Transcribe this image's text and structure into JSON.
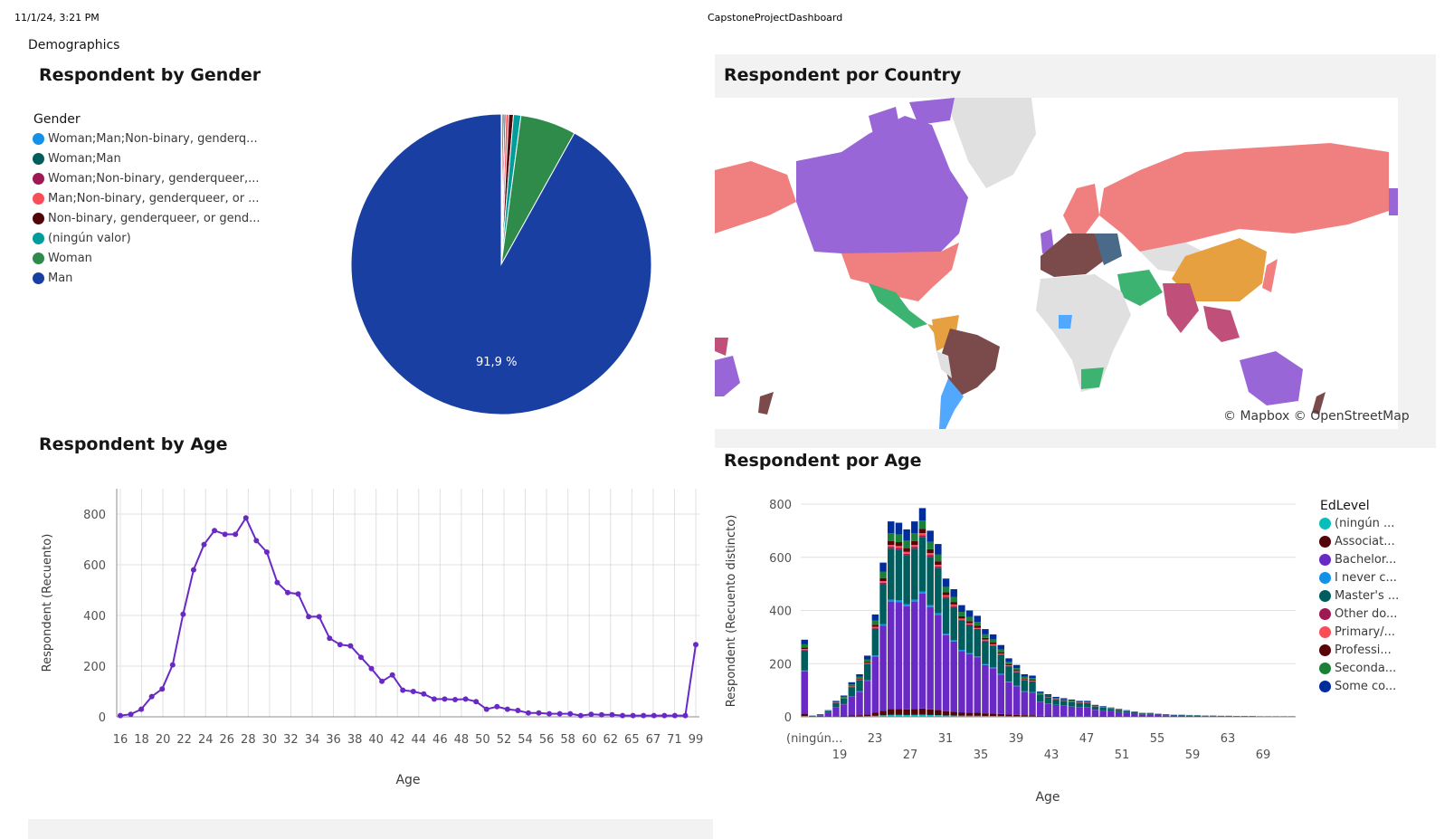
{
  "header": {
    "timestamp": "11/1/24, 3:21 PM",
    "app_title": "CapstoneProjectDashboard"
  },
  "section": {
    "title": "Demographics"
  },
  "gender_panel": {
    "title": "Respondent by Gender",
    "legend_title": "Gender",
    "pie_label": "91,9 %"
  },
  "country_panel": {
    "title": "Respondent por Country",
    "attribution": "© Mapbox © OpenStreetMap"
  },
  "age_line_panel": {
    "title": "Respondent by Age"
  },
  "age_bar_panel": {
    "title": "Respondent por Age",
    "legend_title": "EdLevel"
  },
  "colors": {
    "man": "#1a3fa3",
    "woman": "#2e8b4a",
    "line": "#6929c4",
    "grid": "#e0e0e0",
    "map_base": "#e0e0e0",
    "map_panel_bg": "#f2f2f2"
  },
  "chart_data": [
    {
      "id": "gender",
      "type": "pie",
      "categories": [
        {
          "name": "Woman;Man;Non-binary, genderq...",
          "value": 0.1,
          "color": "#1192e8"
        },
        {
          "name": "Woman;Man",
          "value": 0.2,
          "color": "#005d5d"
        },
        {
          "name": "Woman;Non-binary, genderqueer,...",
          "value": 0.2,
          "color": "#9f1853"
        },
        {
          "name": "Man;Non-binary, genderqueer, or ...",
          "value": 0.3,
          "color": "#fa4d56"
        },
        {
          "name": "Non-binary, genderqueer, or gend...",
          "value": 0.5,
          "color": "#520408"
        },
        {
          "name": "(ningún valor)",
          "value": 0.8,
          "color": "#009d9a"
        },
        {
          "name": "Woman",
          "value": 6.0,
          "color": "#2e8b4a"
        },
        {
          "name": "Man",
          "value": 91.9,
          "color": "#1a3fa3"
        }
      ]
    },
    {
      "id": "age_line",
      "type": "line",
      "xlabel": "Age",
      "ylabel": "Respondent (Recuento)",
      "ylim": [
        0,
        900
      ],
      "yticks": [
        0,
        200,
        400,
        600,
        800
      ],
      "tick_labels": [
        "16",
        "18",
        "20",
        "22",
        "24",
        "26",
        "28",
        "30",
        "32",
        "34",
        "36",
        "38",
        "40",
        "42",
        "44",
        "46",
        "48",
        "50",
        "52",
        "54",
        "56",
        "58",
        "60",
        "62",
        "65",
        "67",
        "71",
        "99"
      ],
      "series": [
        {
          "values": [
            5,
            10,
            30,
            80,
            110,
            205,
            405,
            580,
            680,
            735,
            720,
            720,
            785,
            695,
            650,
            530,
            490,
            485,
            395,
            395,
            310,
            285,
            280,
            235,
            190,
            140,
            165,
            105,
            100,
            90,
            70,
            70,
            68,
            70,
            60,
            30,
            40,
            30,
            25,
            15,
            15,
            12,
            12,
            12,
            5,
            10,
            8,
            8,
            5,
            5,
            5,
            5,
            5,
            5,
            5,
            285
          ]
        }
      ],
      "grid": true
    },
    {
      "id": "age_bar",
      "type": "bar",
      "stacked": true,
      "xlabel": "Age",
      "ylabel": "Respondent (Recuento distincto)",
      "ylim": [
        0,
        800
      ],
      "yticks": [
        0,
        200,
        400,
        600,
        800
      ],
      "x_tick_labels": [
        "(ningún...",
        "19",
        "23",
        "27",
        "31",
        "35",
        "39",
        "43",
        "47",
        "51",
        "55",
        "59",
        "63",
        "69"
      ],
      "legend": [
        {
          "name": "(ningún ...",
          "color": "#08bdba"
        },
        {
          "name": "Associat...",
          "color": "#520408"
        },
        {
          "name": "Bachelor...",
          "color": "#6929c4"
        },
        {
          "name": "I never c...",
          "color": "#1192e8"
        },
        {
          "name": "Master's ...",
          "color": "#005d5d"
        },
        {
          "name": "Other do...",
          "color": "#9f1853"
        },
        {
          "name": "Primary/...",
          "color": "#fa4d56"
        },
        {
          "name": "Professi...",
          "color": "#570408"
        },
        {
          "name": "Seconda...",
          "color": "#198038"
        },
        {
          "name": "Some co...",
          "color": "#002d9c"
        }
      ],
      "totals": [
        290,
        5,
        10,
        25,
        60,
        80,
        130,
        160,
        230,
        385,
        580,
        735,
        730,
        705,
        735,
        785,
        700,
        650,
        520,
        480,
        420,
        400,
        380,
        330,
        310,
        270,
        220,
        195,
        160,
        155,
        95,
        85,
        75,
        70,
        65,
        60,
        60,
        45,
        40,
        35,
        30,
        25,
        20,
        15,
        15,
        12,
        10,
        8,
        8,
        7,
        6,
        5,
        5,
        4,
        4,
        3,
        3,
        3,
        2,
        2,
        2,
        2,
        2
      ]
    }
  ]
}
